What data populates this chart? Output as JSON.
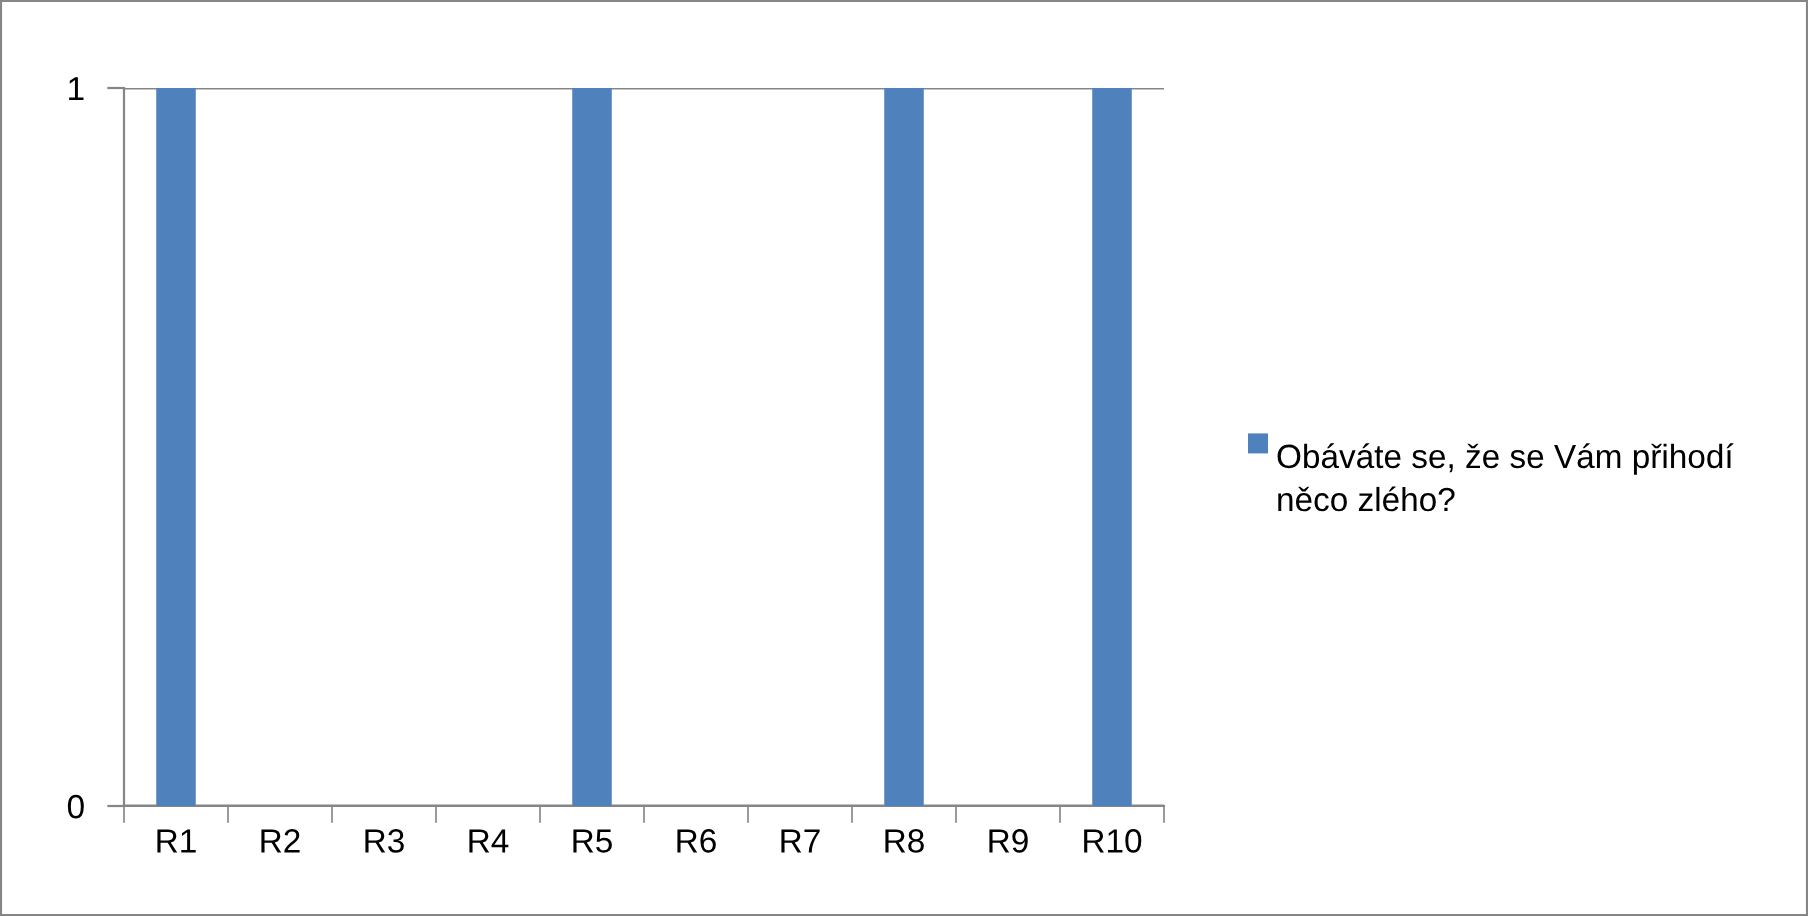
{
  "chart_data": {
    "type": "bar",
    "categories": [
      "R1",
      "R2",
      "R3",
      "R4",
      "R5",
      "R6",
      "R7",
      "R8",
      "R9",
      "R10"
    ],
    "series": [
      {
        "name": "Obáváte se, že se Vám přihodí něco zlého?",
        "color": "#4f81bd",
        "values": [
          1,
          0,
          0,
          0,
          1,
          0,
          0,
          1,
          0,
          1
        ]
      }
    ],
    "ylim": [
      0,
      1
    ],
    "yticks": [
      0,
      1
    ],
    "grid": "y",
    "legend": "right"
  }
}
